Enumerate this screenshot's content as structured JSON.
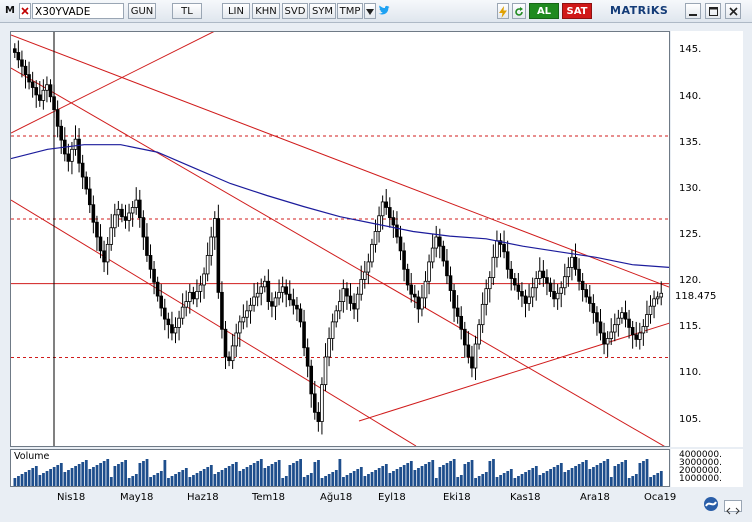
{
  "toolbar": {
    "m_label": "M",
    "symbol": "X30YVADE",
    "buttons": [
      "GUN",
      "TL",
      "LIN",
      "KHN",
      "SVD",
      "SYM",
      "TMP"
    ],
    "buy_label": "AL",
    "sell_label": "SAT",
    "brand": "MATRiKS"
  },
  "price_axis": {
    "labels": [
      "145.",
      "140.",
      "135.",
      "130.",
      "125.",
      "120.",
      "115.",
      "110.",
      "105."
    ],
    "last_price": "118.475"
  },
  "volume": {
    "title": "Volume",
    "axis_labels": [
      "4000000.",
      "3000000.",
      "2000000.",
      "1000000."
    ]
  },
  "time_axis": {
    "labels": [
      "Nis18",
      "May18",
      "Haz18",
      "Tem18",
      "Ağu18",
      "Eyl18",
      "Eki18",
      "Kas18",
      "Ara18",
      "Oca19"
    ]
  },
  "colors": {
    "candle": "#000000",
    "moving_average": "#1c1c9c",
    "trendline": "#d01c1c",
    "volume_bar": "#1e4e8c",
    "buy": "#1f8a1f",
    "sell": "#d01818"
  },
  "chart_data": {
    "type": "candlestick",
    "series": [
      {
        "name": "X30YVADE",
        "values": [
          145.0,
          144.2,
          143.5,
          142.6,
          141.8,
          141.2,
          140.4,
          139.8,
          140.9,
          141.5,
          140.2,
          138.8,
          137.0,
          135.5,
          134.0,
          133.2,
          134.5,
          135.6,
          133.0,
          131.5,
          130.2,
          128.5,
          126.6,
          125.0,
          123.5,
          122.3,
          124.2,
          126.0,
          127.4,
          128.0,
          127.2,
          126.8,
          127.6,
          128.2,
          129.0,
          127.1,
          125.0,
          123.0,
          121.5,
          120.1,
          118.6,
          117.3,
          116.1,
          115.5,
          114.6,
          115.2,
          116.2,
          117.4,
          118.0,
          119.0,
          118.3,
          119.1,
          119.8,
          121.0,
          123.0,
          125.0,
          127.0,
          119.0,
          115.0,
          112.0,
          111.6,
          113.2,
          114.6,
          115.8,
          116.3,
          117.0,
          117.6,
          118.5,
          118.9,
          119.6,
          120.2,
          118.0,
          117.5,
          118.4,
          119.0,
          119.6,
          118.8,
          118.2,
          117.6,
          117.2,
          115.8,
          113.0,
          111.0,
          108.0,
          106.0,
          105.0,
          109.0,
          112.0,
          114.0,
          115.8,
          117.0,
          118.0,
          119.4,
          118.6,
          117.8,
          117.2,
          118.8,
          120.4,
          121.2,
          122.3,
          124.2,
          125.6,
          127.3,
          128.8,
          128.2,
          127.1,
          126.3,
          125.0,
          123.5,
          121.5,
          119.8,
          118.8,
          118.5,
          117.2,
          118.4,
          120.2,
          122.3,
          123.8,
          125.0,
          124.0,
          122.4,
          120.8,
          119.2,
          117.3,
          116.4,
          115.0,
          113.3,
          112.0,
          110.8,
          113.4,
          115.5,
          117.7,
          119.4,
          120.6,
          122.8,
          124.6,
          124.2,
          123.4,
          121.5,
          120.5,
          119.8,
          119.1,
          118.6,
          117.8,
          118.5,
          119.5,
          120.5,
          121.3,
          120.6,
          120.0,
          119.1,
          118.3,
          118.9,
          119.5,
          120.7,
          121.7,
          122.8,
          121.5,
          120.2,
          119.3,
          118.5,
          117.8,
          116.8,
          115.8,
          114.6,
          113.4,
          114.0,
          114.7,
          115.5,
          116.2,
          116.8,
          116.1,
          115.2,
          114.4,
          113.9,
          114.6,
          115.3,
          116.6,
          117.5,
          118.3,
          118.5,
          118.9
        ]
      },
      {
        "name": "MA",
        "values": [
          133.5,
          134.5,
          135.0,
          135.0,
          134.2,
          132.5,
          130.8,
          129.5,
          128.3,
          127.2,
          126.4,
          125.6,
          125.1,
          124.8,
          124.0,
          123.4,
          122.8,
          122.0,
          121.7
        ]
      }
    ],
    "ylim": [
      103,
      147
    ]
  }
}
